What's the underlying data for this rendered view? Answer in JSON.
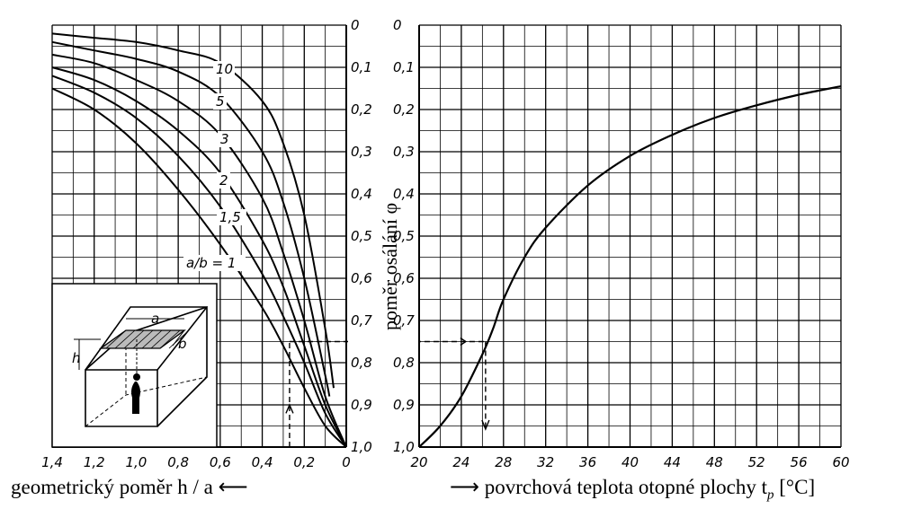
{
  "chart_data": [
    {
      "type": "line",
      "xlabel": "geometrický poměr h / a",
      "xlabel_arrow": "⟵",
      "x_ticks": [
        "1,4",
        "1,2",
        "1,0",
        "0,8",
        "0,6",
        "0,4",
        "0,2",
        "0"
      ],
      "xlim": [
        1.4,
        0
      ],
      "ylim": [
        0,
        1.0
      ],
      "y_reversed": true,
      "grid": true,
      "series": [
        {
          "name": "a/b = 1",
          "x": [
            1.4,
            1.2,
            1.0,
            0.8,
            0.6,
            0.4,
            0.3,
            0.2,
            0.1,
            0.0
          ],
          "y": [
            0.15,
            0.2,
            0.28,
            0.39,
            0.52,
            0.67,
            0.76,
            0.86,
            0.95,
            1.0
          ]
        },
        {
          "name": "1,5",
          "x": [
            1.4,
            1.2,
            1.0,
            0.8,
            0.6,
            0.4,
            0.3,
            0.2,
            0.1,
            0.0
          ],
          "y": [
            0.12,
            0.16,
            0.22,
            0.31,
            0.43,
            0.59,
            0.69,
            0.8,
            0.92,
            1.0
          ]
        },
        {
          "name": "2",
          "x": [
            1.4,
            1.2,
            1.0,
            0.8,
            0.6,
            0.4,
            0.3,
            0.2,
            0.1,
            0.0
          ],
          "y": [
            0.1,
            0.13,
            0.18,
            0.25,
            0.35,
            0.51,
            0.62,
            0.76,
            0.9,
            1.0
          ]
        },
        {
          "name": "3",
          "x": [
            1.4,
            1.2,
            1.0,
            0.8,
            0.6,
            0.4,
            0.3,
            0.2,
            0.1,
            0.0
          ],
          "y": [
            0.07,
            0.09,
            0.13,
            0.18,
            0.26,
            0.41,
            0.54,
            0.7,
            0.88,
            1.0
          ]
        },
        {
          "name": "5",
          "x": [
            1.4,
            1.2,
            1.0,
            0.8,
            0.6,
            0.4,
            0.3,
            0.2,
            0.1,
            0.08
          ],
          "y": [
            0.04,
            0.06,
            0.08,
            0.11,
            0.17,
            0.3,
            0.42,
            0.6,
            0.83,
            0.88
          ]
        },
        {
          "name": "10",
          "x": [
            1.4,
            1.2,
            1.0,
            0.8,
            0.6,
            0.4,
            0.3,
            0.2,
            0.1,
            0.06
          ],
          "y": [
            0.02,
            0.03,
            0.04,
            0.06,
            0.09,
            0.18,
            0.28,
            0.45,
            0.72,
            0.86
          ]
        }
      ]
    },
    {
      "type": "line",
      "xlabel": "povrchová teplota otopné plochy t",
      "xlabel_arrow": "⟶",
      "xlabel_sub": "p",
      "xlabel_unit": "[°C]",
      "x_ticks": [
        "20",
        "24",
        "28",
        "32",
        "36",
        "40",
        "44",
        "48",
        "52",
        "56",
        "60"
      ],
      "xlim": [
        20,
        60
      ],
      "ylabel": "poměr osálání φ",
      "y_ticks": [
        "0",
        "0,1",
        "0,2",
        "0,3",
        "0,4",
        "0,5",
        "0,6",
        "0,7",
        "0,8",
        "0,9",
        "1,0"
      ],
      "ylim": [
        0,
        1.0
      ],
      "y_reversed": true,
      "grid": true,
      "series": [
        {
          "name": "",
          "x": [
            20,
            22,
            24,
            26,
            27,
            28,
            30,
            32,
            36,
            40,
            44,
            48,
            52,
            56,
            60
          ],
          "y": [
            1.0,
            0.95,
            0.88,
            0.78,
            0.72,
            0.65,
            0.55,
            0.48,
            0.38,
            0.31,
            0.26,
            0.22,
            0.19,
            0.165,
            0.145
          ]
        }
      ],
      "example": {
        "h_a": 0.27,
        "phi": 0.75,
        "t_p": 26.3
      }
    }
  ],
  "curve_labels": [
    "10",
    "5",
    "3",
    "2",
    "1,5",
    "a/b = 1"
  ],
  "inset": {
    "label_a": "a",
    "label_b": "b",
    "label_h": "h"
  }
}
